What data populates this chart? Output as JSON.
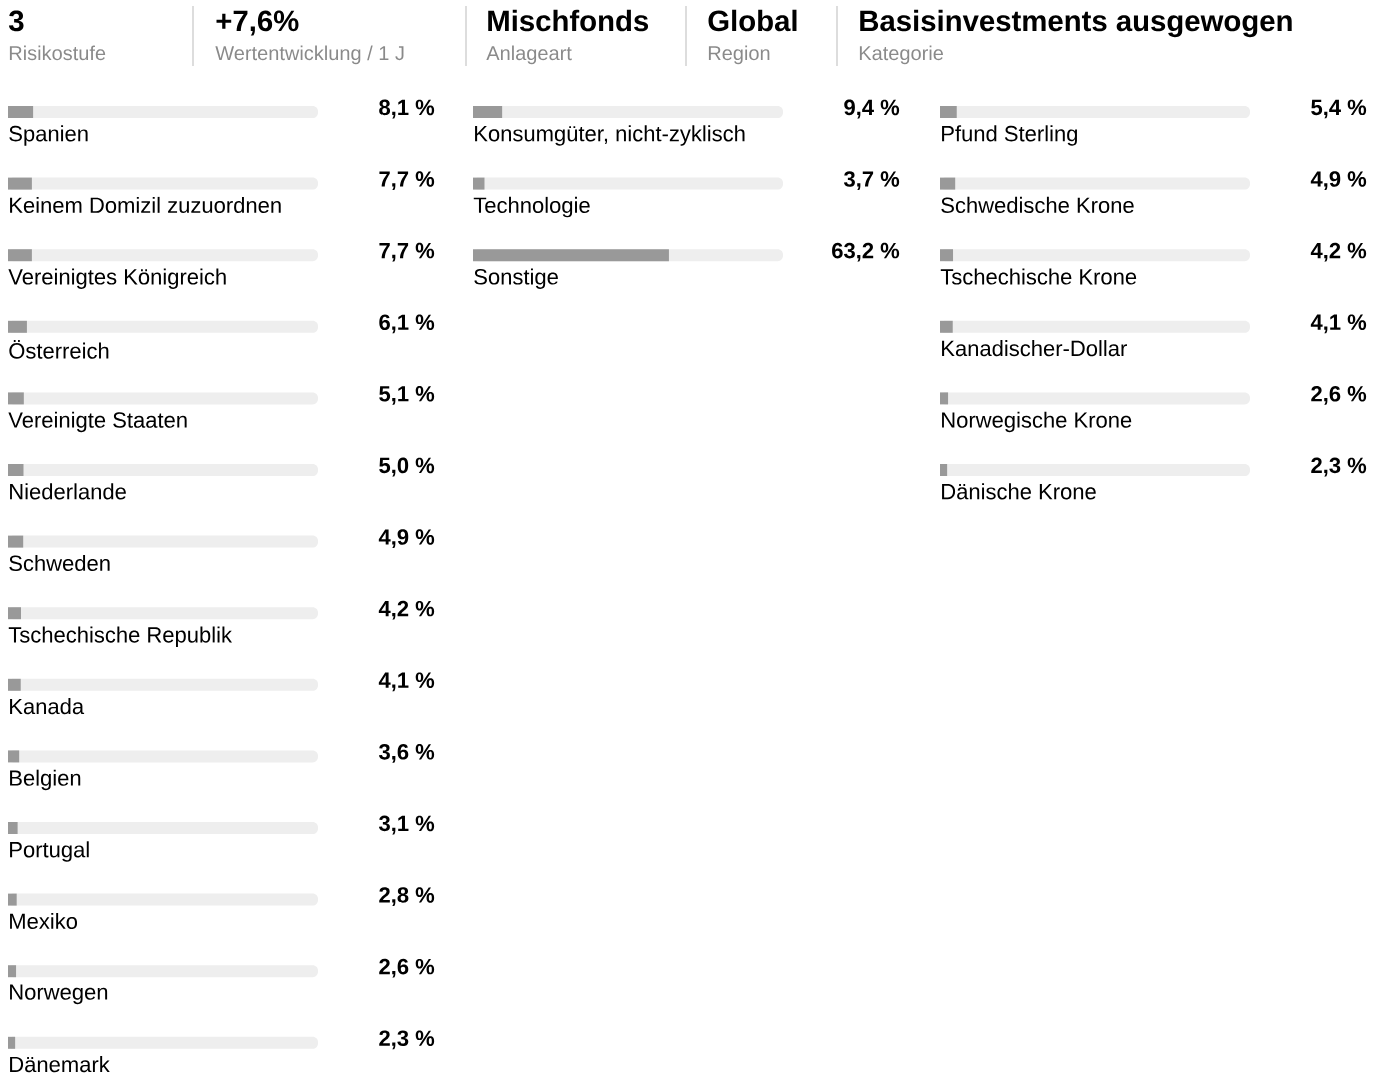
{
  "chart_data": [
    {
      "type": "other",
      "annotations": [
        "3",
        "Risikostufe",
        "+7,6%",
        "Wertentwicklung / 1 J",
        "Mischfonds",
        "Anlageart",
        "Global",
        "Region",
        "Basisinvestments ausgewogen",
        "Kategorie"
      ]
    },
    {
      "type": "bar",
      "orientation": "horizontal",
      "color": "#999999",
      "xlim": [
        0,
        100
      ],
      "tick_labels": false,
      "categories": [
        "Spanien",
        "Keinem Domizil zuzuordnen",
        "Vereinigtes Königreich",
        "Österreich",
        "Vereinigte Staaten",
        "Niederlande",
        "Schweden",
        "Tschechische Republik",
        "Kanada",
        "Belgien",
        "Portugal",
        "Mexiko",
        "Norwegen",
        "Dänemark"
      ],
      "values": [
        8.1,
        7.7,
        7.7,
        6.1,
        5.1,
        5.0,
        4.9,
        4.2,
        4.1,
        3.6,
        3.1,
        2.8,
        2.6,
        2.3
      ],
      "value_labels": [
        "8,1 %",
        "7,7 %",
        "7,7 %",
        "6,1 %",
        "5,1 %",
        "5,0 %",
        "4,9 %",
        "4,2 %",
        "4,1 %",
        "3,6 %",
        "3,1 %",
        "2,8 %",
        "2,6 %",
        "2,3 %"
      ]
    },
    {
      "type": "bar",
      "orientation": "horizontal",
      "color": "#999999",
      "xlim": [
        0,
        100
      ],
      "tick_labels": false,
      "categories": [
        "Konsumgüter, nicht-zyklisch",
        "Technologie",
        "Sonstige"
      ],
      "values": [
        9.4,
        3.7,
        63.2
      ],
      "value_labels": [
        "9,4 %",
        "3,7 %",
        "63,2 %"
      ]
    },
    {
      "type": "bar",
      "orientation": "horizontal",
      "color": "#999999",
      "xlim": [
        0,
        100
      ],
      "tick_labels": false,
      "categories": [
        "Pfund Sterling",
        "Schwedische Krone",
        "Tschechische Krone",
        "Kanadischer-Dollar",
        "Norwegische Krone",
        "Dänische Krone"
      ],
      "values": [
        5.4,
        4.9,
        4.2,
        4.1,
        2.6,
        2.3
      ],
      "value_labels": [
        "5,4 %",
        "4,9 %",
        "4,2 %",
        "4,1 %",
        "2,6 %",
        "2,3 %"
      ]
    }
  ]
}
